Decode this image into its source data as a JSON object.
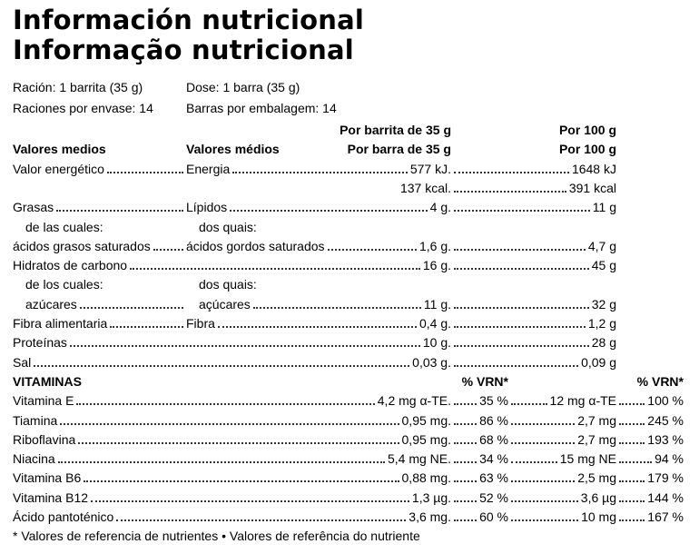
{
  "title": [
    "Información nutricional",
    "Informação nutricional"
  ],
  "serving_info": [
    [
      "Ración: 1 barrita (35 g)",
      "Dose: 1 barra (35 g)"
    ],
    [
      "Raciones por envase: 14",
      "Barras por embalagem: 14"
    ]
  ],
  "columns": {
    "per_serving": [
      "Por barrita de 35 g",
      "Por barra de 35 g"
    ],
    "per_100g": [
      "Por 100 g",
      "Por 100 g"
    ],
    "label": [
      "Valores medios",
      "Valores médios"
    ]
  },
  "nutrients": [
    {
      "es": "Valor energético",
      "pt": "Energia",
      "serving": "577 kJ.",
      "per100": "1648 kJ"
    },
    {
      "serving": "137 kcal.",
      "per100": "391 kcal"
    },
    {
      "es": "Grasas",
      "pt": "Lípidos",
      "serving": "4 g.",
      "per100": "11 g"
    },
    {
      "es": "de las cuales:",
      "pt": "dos quais:"
    },
    {
      "es": "ácidos grasos saturados",
      "pt": "ácidos gordos saturados",
      "serving": "1,6 g.",
      "per100": "4,7 g"
    },
    {
      "es": "Hidratos de carbono",
      "serving": "16 g.",
      "per100": "45 g"
    },
    {
      "es": "de los cuales:",
      "pt": "dos quais:"
    },
    {
      "es": "azúcares",
      "pt": "açúcares",
      "serving": "11 g.",
      "per100": "32 g"
    },
    {
      "es": "Fibra alimentaria",
      "pt": "Fibra",
      "serving": "0,4 g.",
      "per100": "1,2 g"
    },
    {
      "es": "Proteínas",
      "serving": "10 g.",
      "per100": "28 g"
    },
    {
      "es": "Sal",
      "serving": "0,03 g.",
      "per100": "0,09 g"
    }
  ],
  "vitamins": {
    "heading": "VITAMINAS",
    "vrn_heading": [
      "% VRN*",
      "% VRN*"
    ],
    "rows": [
      {
        "name": "Vitamina E",
        "serving": "4,2 mg α-TE.",
        "vrn": "35 %",
        "per100": "12 mg α-TE",
        "vrn100": "100 %"
      },
      {
        "name": "Tiamina",
        "serving": "0,95 mg.",
        "vrn": "86 %",
        "per100": "2,7 mg",
        "vrn100": "245 %"
      },
      {
        "name": "Riboflavina",
        "serving": "0,95 mg.",
        "vrn": "68 %",
        "per100": "2,7 mg",
        "vrn100": "193 %"
      },
      {
        "name": "Niacina",
        "serving": "5,4 mg NE.",
        "vrn": "34 %",
        "per100": "15 mg NE",
        "vrn100": "94 %"
      },
      {
        "name": "Vitamina B6",
        "serving": "0,88 mg.",
        "vrn": "63 %",
        "per100": "2,5 mg",
        "vrn100": "179 %"
      },
      {
        "name": "Vitamina B12",
        "serving": "1,3 µg.",
        "vrn": "52 %",
        "per100": "3,6 µg",
        "vrn100": "144 %"
      },
      {
        "name": "Ácido pantoténico",
        "serving": "3,6 mg.",
        "vrn": "60 %",
        "per100": "10 mg",
        "vrn100": "167 %"
      }
    ]
  },
  "footnote": "* Valores de referencia de nutrientes • Valores de referência do nutriente"
}
